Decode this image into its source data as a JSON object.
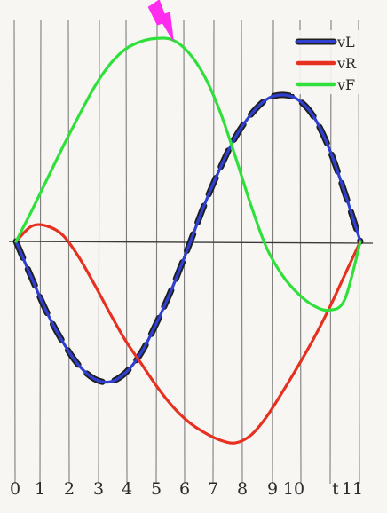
{
  "chart_data": {
    "type": "line",
    "x_ticks": [
      "0",
      "1",
      "2",
      "3",
      "4",
      "5",
      "6",
      "7",
      "8",
      "9",
      "10",
      "t",
      "11"
    ],
    "xlim": [
      0,
      11
    ],
    "ylim": [
      -1.28,
      1.28
    ],
    "grid": true,
    "legend_position": "top-right",
    "series": [
      {
        "name": "vL",
        "color": "#2f3fd0",
        "dash_color": "#1f1f1f",
        "x": [
          0,
          0.5,
          1,
          1.5,
          2,
          2.5,
          3,
          3.5,
          4,
          4.5,
          5,
          5.5,
          6,
          6.5,
          7,
          7.5,
          8,
          8.5,
          9,
          9.5,
          10,
          10.5,
          11
        ],
        "values": [
          0.0,
          -0.24,
          -0.47,
          -0.66,
          -0.81,
          -0.9,
          -0.92,
          -0.86,
          -0.73,
          -0.53,
          -0.3,
          -0.04,
          0.23,
          0.47,
          0.68,
          0.83,
          0.93,
          0.96,
          0.93,
          0.82,
          0.61,
          0.32,
          0.0
        ]
      },
      {
        "name": "vR",
        "color": "#e63020",
        "x": [
          0,
          0.5,
          1,
          1.5,
          2,
          2.5,
          3,
          3.5,
          4,
          4.5,
          5,
          5.5,
          6,
          6.5,
          7,
          7.5,
          8,
          8.5,
          9,
          9.5,
          10,
          10.5,
          11
        ],
        "values": [
          0.0,
          0.1,
          0.1,
          0.04,
          -0.1,
          -0.28,
          -0.47,
          -0.65,
          -0.8,
          -0.95,
          -1.08,
          -1.18,
          -1.25,
          -1.3,
          -1.32,
          -1.27,
          -1.15,
          -0.99,
          -0.82,
          -0.64,
          -0.44,
          -0.22,
          0.0
        ]
      },
      {
        "name": "vF",
        "color": "#30e03a",
        "x": [
          0,
          0.5,
          1,
          1.5,
          2,
          2.5,
          3,
          3.5,
          4,
          4.5,
          5,
          5.5,
          6,
          6.5,
          7,
          7.5,
          8,
          8.5,
          9,
          9.5,
          10,
          10.5,
          11
        ],
        "values": [
          0.0,
          0.2,
          0.41,
          0.62,
          0.82,
          1.01,
          1.16,
          1.26,
          1.31,
          1.33,
          1.32,
          1.24,
          1.09,
          0.86,
          0.56,
          0.24,
          -0.04,
          -0.22,
          -0.34,
          -0.42,
          -0.45,
          -0.38,
          0.0
        ]
      }
    ],
    "legend": [
      {
        "label": "vL",
        "color": "#2f3fd0",
        "dash_color": "#1f1f1f"
      },
      {
        "label": "vR",
        "color": "#e63020"
      },
      {
        "label": "vF",
        "color": "#30e03a"
      }
    ],
    "annotations": [
      {
        "type": "lightning-bolt",
        "color": "#ff2cf0",
        "x": 4.8
      }
    ]
  }
}
